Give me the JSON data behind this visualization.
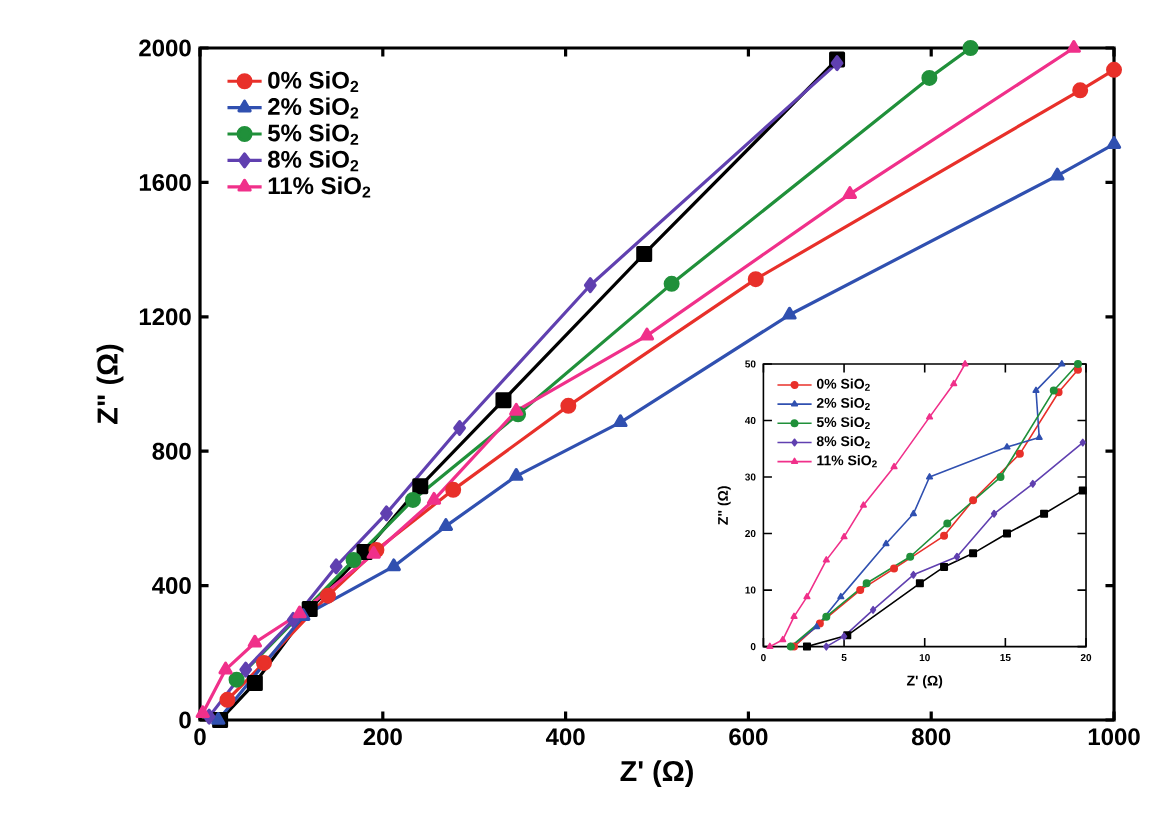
{
  "chart_data": [
    {
      "type": "line",
      "xlabel": "Z' (Ω)",
      "ylabel": "Z\" (Ω)",
      "xlim": [
        0,
        1000
      ],
      "ylim": [
        0,
        2000
      ],
      "xticks": [
        0,
        200,
        400,
        600,
        800,
        1000
      ],
      "yticks": [
        0,
        400,
        800,
        1200,
        1600,
        2000
      ],
      "legend": "top left",
      "series": [
        {
          "color": "#000000",
          "marker": "square",
          "x": [
            22,
            60,
            120,
            180,
            241,
            332,
            486,
            697
          ],
          "values": [
            0,
            110,
            330,
            500,
            696,
            952,
            1387,
            1966
          ]
        },
        {
          "name": "0% SiO$_{2}$",
          "color": "#e8302a",
          "marker": "circle",
          "x": [
            30,
            70,
            140,
            193,
            277,
            403,
            608,
            963,
            1000
          ],
          "values": [
            60,
            170,
            370,
            506,
            685,
            935,
            1312,
            1874,
            1935
          ]
        },
        {
          "name": "2% SiO$_{2}$",
          "color": "#3050b0",
          "marker": "triangle",
          "x": [
            20,
            113,
            212,
            269,
            346,
            460,
            645,
            938,
            1000
          ],
          "values": [
            0,
            309,
            457,
            577,
            726,
            886,
            1206,
            1620,
            1714
          ]
        },
        {
          "name": "5% SiO$_{2}$",
          "color": "#20903a",
          "marker": "circle",
          "x": [
            40,
            168,
            233,
            348,
            516,
            798,
            843
          ],
          "values": [
            120,
            476,
            655,
            910,
            1298,
            1911,
            2000
          ]
        },
        {
          "name": "8% SiO$_{2}$",
          "color": "#6040b0",
          "marker": "diamond",
          "x": [
            10,
            50,
            102,
            149,
            204,
            284,
            427,
            697
          ],
          "values": [
            10,
            150,
            298,
            457,
            615,
            869,
            1294,
            1955
          ]
        },
        {
          "name": "11% SiO$_{2}$",
          "color": "#f0308a",
          "marker": "triangle",
          "x": [
            3,
            28,
            60,
            109,
            190,
            256,
            346,
            489,
            711,
            956
          ],
          "values": [
            20,
            150,
            230,
            317,
            494,
            655,
            920,
            1144,
            1565,
            2000
          ]
        }
      ]
    },
    {
      "type": "line",
      "xlabel": "Z' (Ω)",
      "ylabel": "Z\" (Ω)",
      "xlim": [
        0,
        20
      ],
      "ylim": [
        0,
        50
      ],
      "xticks": [
        0,
        5,
        10,
        15,
        20
      ],
      "yticks": [
        0,
        10,
        20,
        30,
        40,
        50
      ],
      "legend": "top left",
      "series": [
        {
          "color": "#000000",
          "marker": "square",
          "x": [
            2.7,
            5.2,
            9.7,
            11.2,
            13,
            15.1,
            17.4,
            19.8
          ],
          "values": [
            0,
            2,
            11.2,
            14.1,
            16.5,
            20,
            23.5,
            27.6
          ]
        },
        {
          "name": "0% SiO$_{2}$",
          "color": "#e8302a",
          "marker": "circle",
          "x": [
            1.9,
            3.5,
            6,
            8.1,
            11.2,
            13,
            15.9,
            18.3,
            19.5
          ],
          "values": [
            0,
            4.1,
            10,
            13.8,
            19.6,
            25.9,
            34.1,
            45,
            49
          ]
        },
        {
          "name": "2% SiO$_{2}$",
          "color": "#3050b0",
          "marker": "triangle",
          "x": [
            1.7,
            3.3,
            4.8,
            7.6,
            9.3,
            10.3,
            15.1,
            17.1,
            16.9,
            18.5
          ],
          "values": [
            0,
            3.5,
            8.8,
            18.2,
            23.5,
            30,
            35.3,
            37,
            45.3,
            50
          ]
        },
        {
          "name": "5% SiO$_{2}$",
          "color": "#20903a",
          "marker": "circle",
          "x": [
            1.7,
            3.9,
            6.4,
            9.1,
            11.4,
            14.7,
            18,
            19.5
          ],
          "values": [
            0,
            5.3,
            11.2,
            15.9,
            21.8,
            30,
            45.3,
            50
          ]
        },
        {
          "name": "8% SiO$_{2}$",
          "color": "#6040b0",
          "marker": "diamond",
          "x": [
            3.9,
            5,
            6.8,
            9.3,
            12,
            14.3,
            16.7,
            19.8
          ],
          "values": [
            0,
            1.8,
            6.5,
            12.7,
            15.9,
            23.5,
            28.8,
            36.1
          ]
        },
        {
          "name": "11% SiO$_{2}$",
          "color": "#f0308a",
          "marker": "triangle",
          "x": [
            0.4,
            1.2,
            1.9,
            2.7,
            3.9,
            5,
            6.2,
            8.1,
            10.3,
            11.8,
            12.5
          ],
          "values": [
            0,
            1.2,
            5.3,
            8.8,
            15.3,
            19.4,
            25,
            31.8,
            40.6,
            46.5,
            50
          ]
        }
      ]
    }
  ]
}
